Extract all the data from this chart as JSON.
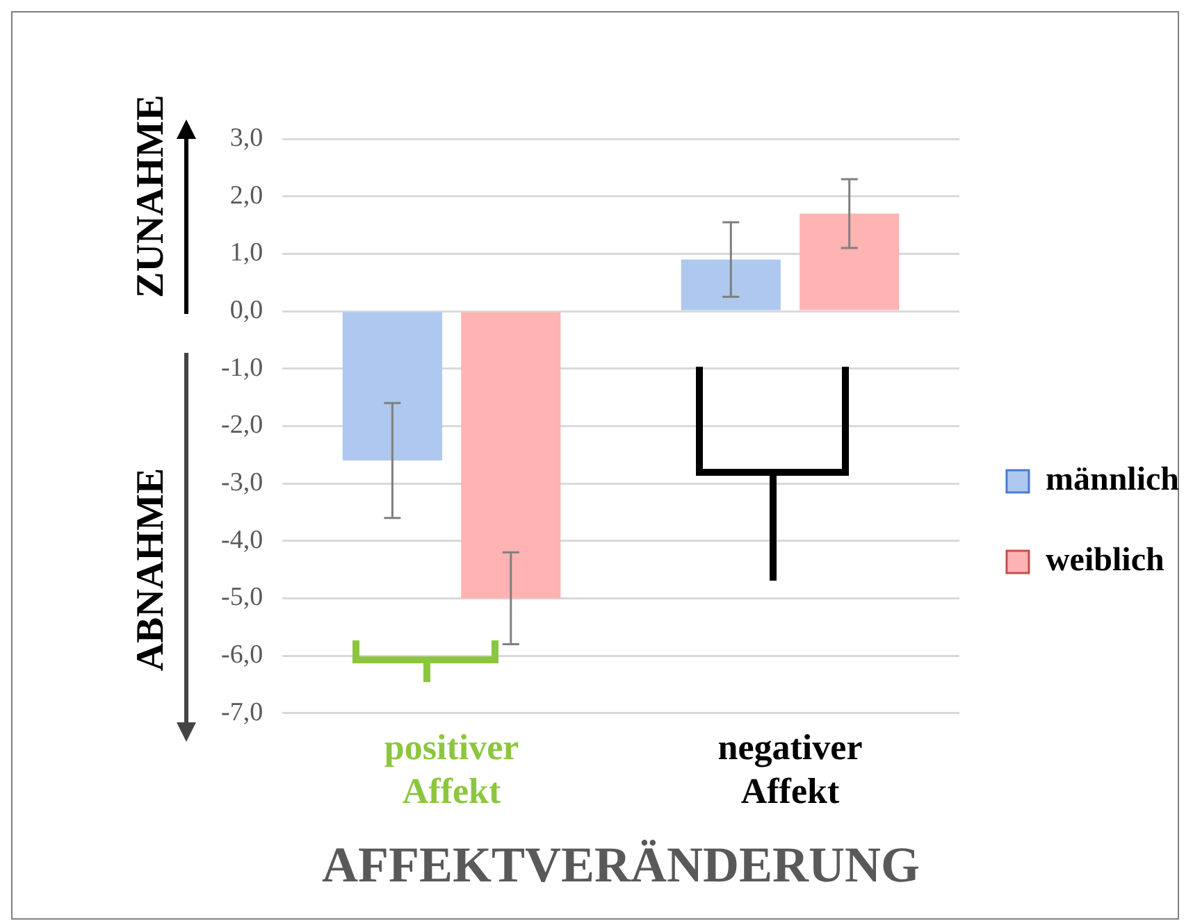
{
  "chart_data": {
    "type": "bar",
    "xlabel": "AFFEKTVERÄNDERUNG",
    "categories": [
      "positiver Affekt",
      "negativer Affekt"
    ],
    "series": [
      {
        "name": "männlich",
        "color": "#aec8f0",
        "values": [
          -2.6,
          0.9
        ],
        "errors": [
          1.0,
          0.65
        ]
      },
      {
        "name": "weiblich",
        "color": "#ffb3b3",
        "values": [
          -5.0,
          1.7
        ],
        "errors": [
          0.8,
          0.6
        ]
      }
    ],
    "ylim": [
      -7,
      3
    ],
    "yticks": [
      {
        "value": -7,
        "label": "-7,0"
      },
      {
        "value": -6,
        "label": "-6,0"
      },
      {
        "value": -5,
        "label": "-5,0"
      },
      {
        "value": -4,
        "label": "-4,0"
      },
      {
        "value": -3,
        "label": "-3,0"
      },
      {
        "value": -2,
        "label": "-2,0"
      },
      {
        "value": -1,
        "label": "-1,0"
      },
      {
        "value": 0,
        "label": "0,0"
      },
      {
        "value": 1,
        "label": "1,0"
      },
      {
        "value": 2,
        "label": "2,0"
      },
      {
        "value": 3,
        "label": "3,0"
      }
    ],
    "annotations": [
      "ZUNAHME",
      "ABNAHME"
    ],
    "grid": "y",
    "legend": "right"
  }
}
